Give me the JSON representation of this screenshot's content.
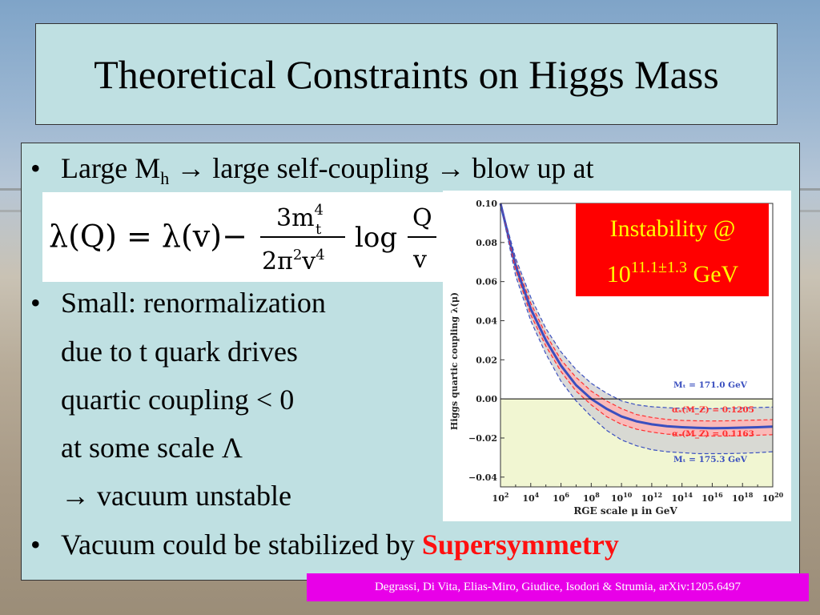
{
  "slide": {
    "title": "Theoretical Constraints on Higgs Mass",
    "bullets": {
      "b1_a": "Large M",
      "b1_sub": "h",
      "b1_b": "→ large self-coupling → blow up at",
      "b2_l1": "Small: renormalization",
      "b2_l2": "due to t quark drives",
      "b2_l3": "quartic coupling < 0",
      "b2_l4": "at some scale Λ",
      "b2_l5": "→ vacuum unstable",
      "b3_a": "Vacuum could be stabilized by ",
      "b3_b": "Supersymmetry"
    },
    "bullet_glyph": "•",
    "citation": "Degrassi, Di Vita, Elias-Miro, Giudice, Isodori & Strumia, arXiv:1205.6497"
  },
  "formula": {
    "lhs": "λ(Q) = λ(v)−",
    "num": "3m",
    "num_sup": "4",
    "num_sub": "t",
    "den": "2π",
    "den_sup1": "2",
    "den_v": "v",
    "den_sup2": "4",
    "log": "log",
    "frac2_num": "Q",
    "frac2_den": "v"
  },
  "chart_data": {
    "type": "line",
    "xlabel": "RGE scale μ in GeV",
    "ylabel": "Higgs quartic coupling λ(μ)",
    "xscale": "log",
    "xlim": [
      100,
      1e+20
    ],
    "ylim": [
      -0.045,
      0.1
    ],
    "x_ticks": [
      "2",
      "4",
      "6",
      "8",
      "10",
      "12",
      "14",
      "16",
      "18",
      "20"
    ],
    "y_ticks": [
      "0.10",
      "0.08",
      "0.06",
      "0.04",
      "0.02",
      "0.00",
      "−0.02",
      "−0.04"
    ],
    "annotation_box": {
      "line1": "Instability @",
      "line2_base": "10",
      "line2_sup": "11.1±1.3",
      "line2_unit": " GeV"
    },
    "series": [
      {
        "name": "M_t = 171.0 GeV",
        "label": "Mₜ = 171.0 GeV",
        "style": "dashed-blue",
        "log10_mu": [
          2,
          3,
          4,
          5,
          6,
          7,
          8,
          9,
          10,
          11,
          12,
          13,
          14,
          15,
          16,
          17,
          18,
          19,
          20
        ],
        "values": [
          0.1,
          0.072,
          0.052,
          0.036,
          0.024,
          0.015,
          0.008,
          0.003,
          -0.001,
          -0.003,
          -0.004,
          -0.0045,
          -0.0048,
          -0.005,
          -0.005,
          -0.0048,
          -0.0046,
          -0.0044,
          -0.0042
        ]
      },
      {
        "name": "alpha_s(M_Z) = 0.1205",
        "label": "αₛ(M_Z) = 0.1205",
        "style": "dashed-red",
        "log10_mu": [
          2,
          3,
          4,
          5,
          6,
          7,
          8,
          9,
          10,
          11,
          12,
          13,
          14,
          15,
          16,
          17,
          18,
          19,
          20
        ],
        "values": [
          0.1,
          0.07,
          0.049,
          0.033,
          0.02,
          0.011,
          0.004,
          -0.001,
          -0.005,
          -0.008,
          -0.0095,
          -0.0105,
          -0.011,
          -0.0112,
          -0.0113,
          -0.0112,
          -0.011,
          -0.0108,
          -0.0106
        ]
      },
      {
        "name": "central",
        "label": "",
        "style": "solid-blue",
        "log10_mu": [
          2,
          3,
          4,
          5,
          6,
          7,
          8,
          9,
          10,
          11,
          12,
          13,
          14,
          15,
          16,
          17,
          18,
          19,
          20
        ],
        "values": [
          0.1,
          0.068,
          0.046,
          0.03,
          0.017,
          0.007,
          0.0,
          -0.005,
          -0.009,
          -0.0115,
          -0.013,
          -0.014,
          -0.0145,
          -0.0148,
          -0.015,
          -0.0149,
          -0.0147,
          -0.0145,
          -0.0142
        ]
      },
      {
        "name": "alpha_s(M_Z) = 0.1163",
        "label": "αₛ(M_Z) = 0.1163",
        "style": "dashed-red",
        "log10_mu": [
          2,
          3,
          4,
          5,
          6,
          7,
          8,
          9,
          10,
          11,
          12,
          13,
          14,
          15,
          16,
          17,
          18,
          19,
          20
        ],
        "values": [
          0.1,
          0.066,
          0.043,
          0.027,
          0.014,
          0.004,
          -0.003,
          -0.009,
          -0.013,
          -0.0155,
          -0.017,
          -0.018,
          -0.0185,
          -0.0188,
          -0.019,
          -0.019,
          -0.0188,
          -0.0186,
          -0.0183
        ]
      },
      {
        "name": "M_t = 175.3 GeV",
        "label": "Mₜ = 175.3 GeV",
        "style": "dashed-blue",
        "log10_mu": [
          2,
          3,
          4,
          5,
          6,
          7,
          8,
          9,
          10,
          11,
          12,
          13,
          14,
          15,
          16,
          17,
          18,
          19,
          20
        ],
        "values": [
          0.1,
          0.063,
          0.04,
          0.023,
          0.009,
          -0.001,
          -0.009,
          -0.016,
          -0.021,
          -0.024,
          -0.026,
          -0.027,
          -0.0275,
          -0.028,
          -0.028,
          -0.028,
          -0.0278,
          -0.0275,
          -0.027
        ]
      }
    ],
    "colors": {
      "instability_box": "#ff0000",
      "instability_text": "#ffff00",
      "band": "#d4d4d4",
      "inner_band": "#ffb4b4",
      "negative_region": "#f1f6d2",
      "blue": "#3a4fbf",
      "red": "#ff3030"
    }
  }
}
